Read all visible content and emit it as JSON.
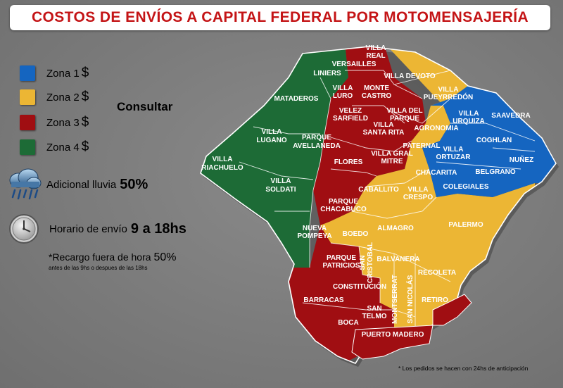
{
  "title": "COSTOS DE ENVÍOS A CAPITAL FEDERAL POR MOTOMENSAJERÍA",
  "legend": [
    {
      "label": "Zona 1",
      "symbol": "$",
      "color": "#1565c0"
    },
    {
      "label": "Zona 2",
      "symbol": "$",
      "color": "#ecb634"
    },
    {
      "label": "Zona 3",
      "symbol": "$",
      "color": "#a00e12"
    },
    {
      "label": "Zona 4",
      "symbol": "$",
      "color": "#1d6b36"
    }
  ],
  "consultar": "Consultar",
  "rain": {
    "label": "Adicional lluvia",
    "value": "50%",
    "icon": "rain-cloud-icon"
  },
  "hours": {
    "label": "Horario de envío",
    "value": "9 a 18hs",
    "icon": "clock-icon"
  },
  "surcharge": {
    "label": "*Recargo fuera de hora",
    "value": "50%",
    "detail": "antes de las 9hs o despues de las 18hs"
  },
  "footnote": "* Los pedidos se hacen con 24hs de anticipación",
  "neighborhoods": [
    [
      "VILLA",
      "REAL"
    ],
    [
      "VERSAILLES"
    ],
    [
      "LINIERS"
    ],
    [
      "VILLA DEVOTO"
    ],
    [
      "MATADEROS"
    ],
    [
      "VILLA",
      "LURO"
    ],
    [
      "MONTE",
      "CASTRO"
    ],
    [
      "VILLA",
      "PUEYRREDÓN"
    ],
    [
      "VELEZ",
      "SARFIELD"
    ],
    [
      "VILLA DEL",
      "PARQUE"
    ],
    [
      "VILLA",
      "URQUIZA"
    ],
    [
      "SAAVEDRA"
    ],
    [
      "VILLA",
      "SANTA RITA"
    ],
    [
      "AGRONOMIA"
    ],
    [
      "VILLA",
      "LUGANO"
    ],
    [
      "PARQUE",
      "AVELLANEDA"
    ],
    [
      "COGHLAN"
    ],
    [
      "PATERNAL"
    ],
    [
      "VILLA",
      "ORTUZAR"
    ],
    [
      "VILLA GRAL",
      "MITRE"
    ],
    [
      "VILLA",
      "RIACHUELO"
    ],
    [
      "NUÑEZ"
    ],
    [
      "FLORES"
    ],
    [
      "CHACARITA"
    ],
    [
      "BELGRANO"
    ],
    [
      "VILLA",
      "SOLDATI"
    ],
    [
      "COLEGIALES"
    ],
    [
      "CABALLITO"
    ],
    [
      "VILLA",
      "CRESPO"
    ],
    [
      "PARQUE",
      "CHACABUCO"
    ],
    [
      "PALERMO"
    ],
    [
      "NUEVA",
      "POMPEYA"
    ],
    [
      "BOEDO"
    ],
    [
      "ALMAGRO"
    ],
    [
      "PARQUE",
      "PATRICIOS"
    ],
    [
      "SAN",
      "CRISTOBAL"
    ],
    [
      "BALVANERA"
    ],
    [
      "RECOLETA"
    ],
    [
      "CONSTITUCIÓN"
    ],
    [
      "MONTSERRAT"
    ],
    [
      "SAN NICOLÁS"
    ],
    [
      "BARRACAS"
    ],
    [
      "RETIRO"
    ],
    [
      "SAN",
      "TELMO"
    ],
    [
      "BOCA"
    ],
    [
      "PUERTO MADERO"
    ]
  ]
}
